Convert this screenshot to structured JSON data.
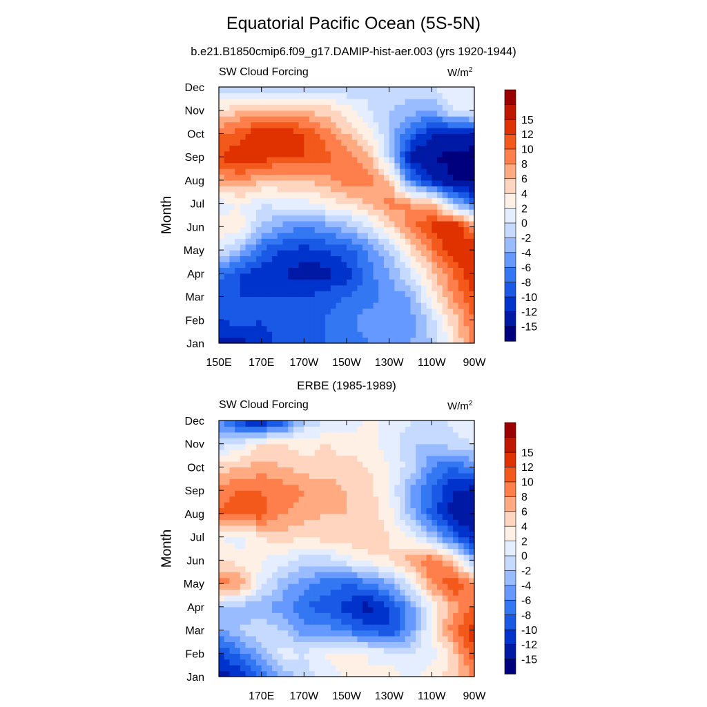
{
  "page": {
    "title": "Equatorial Pacific Ocean (5S-5N)",
    "subtitle": "b.e21.B1850cmip6.f09_g17.DAMIP-hist-aer.003 (yrs 1920-1944)"
  },
  "panels": [
    {
      "center_title": "",
      "left_title": "SW Cloud Forcing",
      "right_title": "W/m",
      "right_title_sup": "2",
      "ylabel": "Month"
    },
    {
      "center_title": "ERBE (1985-1989)",
      "left_title": "SW Cloud Forcing",
      "right_title": "W/m",
      "right_title_sup": "2",
      "ylabel": "Month"
    }
  ],
  "colors": {
    "levels_palette": [
      "#00007f",
      "#0019a5",
      "#0033cc",
      "#1959e6",
      "#3377f2",
      "#6699ff",
      "#99bbff",
      "#c6daff",
      "#e5eeff",
      "#fff0e5",
      "#ffd5bf",
      "#ffaa80",
      "#ff7f4c",
      "#f2591a",
      "#e03200",
      "#c01800",
      "#9a0000"
    ]
  },
  "chart_data": [
    {
      "type": "heatmap",
      "variable": "SW Cloud Forcing",
      "units": "W/m2",
      "x": [
        150,
        160,
        170,
        180,
        190,
        200,
        210,
        220,
        230,
        240,
        250,
        260,
        270
      ],
      "x_ticks": [
        150,
        170,
        190,
        210,
        230,
        250,
        270
      ],
      "x_ticklabels": [
        "150E",
        "170E",
        "170W",
        "150W",
        "130W",
        "110W",
        "90W"
      ],
      "y_ticklabels": [
        "Jan",
        "Feb",
        "Mar",
        "Apr",
        "May",
        "Jun",
        "Jul",
        "Aug",
        "Sep",
        "Oct",
        "Nov",
        "Dec"
      ],
      "xlim": [
        150,
        270
      ],
      "ylim": [
        1,
        12
      ],
      "colorbar_labels": [
        "-15",
        "-12",
        "-10",
        "-8",
        "-6",
        "-4",
        "-2",
        "0",
        "2",
        "4",
        "6",
        "8",
        "10",
        "12",
        "15"
      ],
      "z": [
        [
          -13,
          -13,
          -11,
          -9,
          -9,
          -8,
          -7,
          -6,
          -6,
          -4,
          -2,
          3,
          10
        ],
        [
          -10,
          -9,
          -10,
          -9,
          -9,
          -8,
          -7,
          -5,
          -5,
          -5,
          -1,
          5,
          10
        ],
        [
          -9,
          -10,
          -10,
          -10,
          -10,
          -9,
          -8,
          -7,
          -5,
          -4,
          3,
          8,
          12
        ],
        [
          -7,
          -10,
          -11,
          -12,
          -13,
          -13,
          -11,
          -7,
          -4,
          0,
          5,
          10,
          14
        ],
        [
          1,
          -3,
          -8,
          -10,
          -11,
          -10,
          -9,
          -6,
          -2,
          4,
          9,
          14,
          14
        ],
        [
          3,
          3,
          -2,
          -5,
          -6,
          -5,
          -3,
          0,
          4,
          9,
          13,
          15,
          8
        ],
        [
          1,
          2,
          0,
          1,
          1,
          3,
          4,
          6,
          9,
          8,
          6,
          -2,
          -8
        ],
        [
          7,
          8,
          6,
          6,
          6,
          7,
          9,
          9,
          6,
          -7,
          -12,
          -15,
          -16
        ],
        [
          12,
          14,
          13,
          12,
          12,
          11,
          9,
          7,
          -1,
          -13,
          -15,
          -16,
          -17
        ],
        [
          10,
          11,
          14,
          14,
          12,
          9,
          6,
          3,
          -2,
          -8,
          -12,
          -12,
          -12
        ],
        [
          4,
          6,
          7,
          7,
          6,
          5,
          3,
          0,
          -2,
          -3,
          -4,
          0,
          1
        ],
        [
          -1,
          -3,
          -2,
          -2,
          -2,
          -1,
          -2,
          0,
          0,
          -1,
          0,
          2,
          1
        ]
      ]
    },
    {
      "type": "heatmap",
      "variable": "SW Cloud Forcing",
      "units": "W/m2",
      "x": [
        150,
        160,
        170,
        180,
        190,
        200,
        210,
        220,
        230,
        240,
        250,
        260,
        270
      ],
      "x_ticks": [
        170,
        190,
        210,
        230,
        250,
        270
      ],
      "x_ticklabels": [
        "170E",
        "170W",
        "150W",
        "130W",
        "110W",
        "90W"
      ],
      "y_ticklabels": [
        "Jan",
        "Feb",
        "Mar",
        "Apr",
        "May",
        "Jun",
        "Jul",
        "Aug",
        "Sep",
        "Oct",
        "Nov",
        "Dec"
      ],
      "xlim": [
        150,
        270
      ],
      "ylim": [
        1,
        12
      ],
      "colorbar_labels": [
        "-15",
        "-12",
        "-10",
        "-8",
        "-6",
        "-4",
        "-2",
        "0",
        "2",
        "4",
        "6",
        "8",
        "10",
        "12",
        "15"
      ],
      "z": [
        [
          -13,
          -12,
          -8,
          -4,
          -1,
          1,
          2,
          2,
          3,
          1,
          3,
          5,
          8
        ],
        [
          -11,
          -7,
          -3,
          1,
          0,
          2,
          3,
          2,
          1,
          0,
          1,
          5,
          12
        ],
        [
          -4,
          -2,
          0,
          -2,
          -5,
          -5,
          -7,
          -9,
          -10,
          -5,
          3,
          9,
          14
        ],
        [
          -2,
          -3,
          -4,
          -5,
          -8,
          -9,
          -11,
          -13,
          -10,
          -5,
          2,
          7,
          10
        ],
        [
          9,
          8,
          1,
          -3,
          -5,
          -7,
          -8,
          -7,
          -4,
          1,
          8,
          12,
          9
        ],
        [
          4,
          3,
          2,
          1,
          -1,
          -1,
          1,
          3,
          4,
          7,
          10,
          6,
          -4
        ],
        [
          2,
          1,
          4,
          5,
          4,
          5,
          5,
          6,
          4,
          2,
          -2,
          -8,
          -12
        ],
        [
          10,
          11,
          11,
          8,
          7,
          6,
          6,
          5,
          3,
          -3,
          -9,
          -13,
          -15
        ],
        [
          9,
          10,
          10,
          9,
          8,
          7,
          6,
          5,
          2,
          -4,
          -8,
          -12,
          -13
        ],
        [
          5,
          6,
          7,
          6,
          5,
          5,
          5,
          4,
          2,
          -1,
          -6,
          -8,
          -6
        ],
        [
          -1,
          1,
          4,
          4,
          3,
          4,
          3,
          3,
          1,
          -2,
          -2,
          -1,
          0
        ],
        [
          -6,
          -11,
          -13,
          -10,
          -2,
          0,
          1,
          2,
          2,
          0,
          -2,
          1,
          2
        ]
      ]
    }
  ]
}
